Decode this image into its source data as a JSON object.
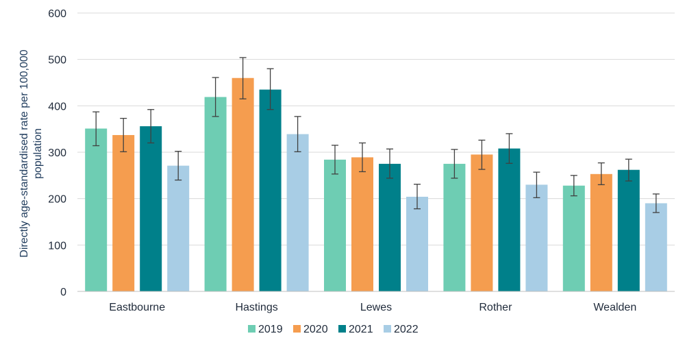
{
  "chart_data": {
    "type": "bar",
    "title": "",
    "xlabel": "",
    "ylabel_lines": [
      "Directly age-standardised rate per 100,000",
      "population"
    ],
    "ylim": [
      0,
      600
    ],
    "yticks": [
      0,
      100,
      200,
      300,
      400,
      500,
      600
    ],
    "grid": true,
    "legend_position": "bottom",
    "categories": [
      "Eastbourne",
      "Hastings",
      "Lewes",
      "Rother",
      "Wealden"
    ],
    "series": [
      {
        "name": "2019",
        "color": "#6ecdb3",
        "values": [
          351,
          419,
          284,
          275,
          228
        ],
        "err_low": [
          314,
          377,
          253,
          244,
          206
        ],
        "err_high": [
          387,
          461,
          315,
          306,
          250
        ]
      },
      {
        "name": "2020",
        "color": "#f59d4f",
        "values": [
          337,
          460,
          289,
          295,
          253
        ],
        "err_low": [
          301,
          415,
          258,
          263,
          230
        ],
        "err_high": [
          373,
          504,
          320,
          326,
          277
        ]
      },
      {
        "name": "2021",
        "color": "#00808a",
        "values": [
          356,
          435,
          275,
          308,
          262
        ],
        "err_low": [
          320,
          392,
          244,
          276,
          238
        ],
        "err_high": [
          392,
          480,
          307,
          340,
          285
        ]
      },
      {
        "name": "2022",
        "color": "#a8cde5",
        "values": [
          271,
          339,
          204,
          230,
          190
        ],
        "err_low": [
          240,
          301,
          178,
          202,
          170
        ],
        "err_high": [
          302,
          377,
          231,
          257,
          210
        ]
      }
    ]
  }
}
